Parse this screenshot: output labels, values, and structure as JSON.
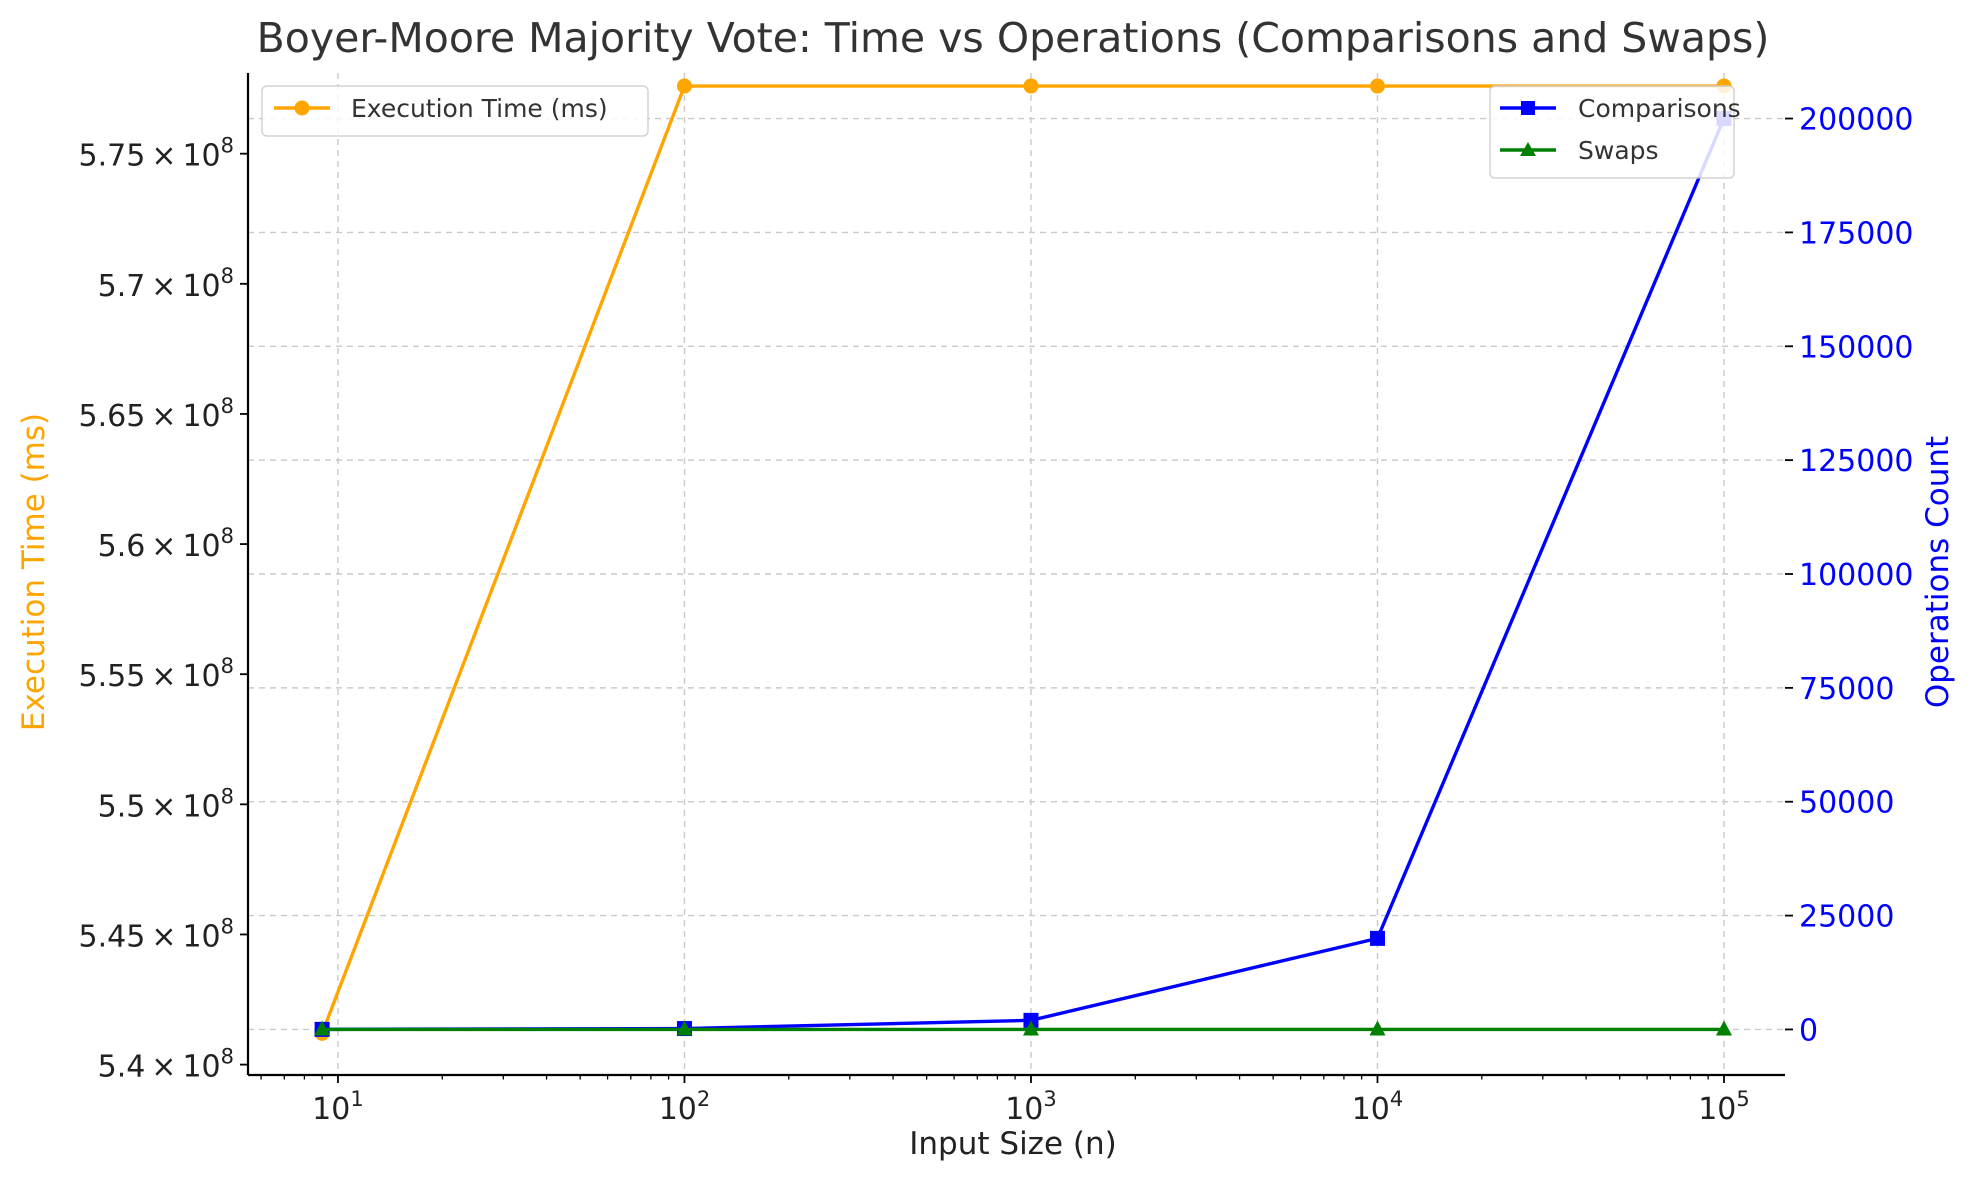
{
  "chart_data": {
    "type": "line",
    "title": "Boyer-Moore Majority Vote: Time vs Operations (Comparisons and Swaps)",
    "xlabel": "Input Size (n)",
    "x_scale": "log",
    "xlim": [
      5.5,
      150000
    ],
    "x": [
      9,
      100,
      1000,
      10000,
      100000
    ],
    "x_ticks": [
      {
        "base": "10",
        "exp": "1",
        "value": 10
      },
      {
        "base": "10",
        "exp": "2",
        "value": 100
      },
      {
        "base": "10",
        "exp": "3",
        "value": 1000
      },
      {
        "base": "10",
        "exp": "4",
        "value": 10000
      },
      {
        "base": "10",
        "exp": "5",
        "value": 100000
      }
    ],
    "y_left": {
      "label": "Execution Time (ms)",
      "color": "#ffa500",
      "ylim": [
        539600000,
        578100000
      ],
      "ticks": [
        {
          "mant": "5.4",
          "exp": "8",
          "value": 540000000
        },
        {
          "mant": "5.45",
          "exp": "8",
          "value": 545000000
        },
        {
          "mant": "5.5",
          "exp": "8",
          "value": 550000000
        },
        {
          "mant": "5.55",
          "exp": "8",
          "value": 555000000
        },
        {
          "mant": "5.6",
          "exp": "8",
          "value": 560000000
        },
        {
          "mant": "5.65",
          "exp": "8",
          "value": 565000000
        },
        {
          "mant": "5.7",
          "exp": "8",
          "value": 570000000
        },
        {
          "mant": "5.75",
          "exp": "8",
          "value": 575000000
        }
      ]
    },
    "y_right": {
      "label": "Operations Count",
      "color": "#0000ff",
      "ylim": [
        -10000,
        210000
      ],
      "ticks": [
        {
          "label": "0",
          "value": 0
        },
        {
          "label": "25000",
          "value": 25000
        },
        {
          "label": "50000",
          "value": 50000
        },
        {
          "label": "75000",
          "value": 75000
        },
        {
          "label": "100000",
          "value": 100000
        },
        {
          "label": "125000",
          "value": 125000
        },
        {
          "label": "150000",
          "value": 150000
        },
        {
          "label": "175000",
          "value": 175000
        },
        {
          "label": "200000",
          "value": 200000
        }
      ]
    },
    "series": [
      {
        "name": "Execution Time (ms)",
        "axis": "left",
        "color": "#ffa500",
        "marker": "circle",
        "values": [
          541200000,
          577600000,
          577600000,
          577600000,
          577600000
        ]
      },
      {
        "name": "Comparisons",
        "axis": "right",
        "color": "#0000ff",
        "marker": "square",
        "values": [
          18,
          200,
          2000,
          20000,
          200000
        ]
      },
      {
        "name": "Swaps",
        "axis": "right",
        "color": "#008000",
        "marker": "triangle",
        "values": [
          0,
          0,
          0,
          0,
          0
        ]
      }
    ],
    "grid": true,
    "legend_left": "top-left",
    "legend_right": "top-right"
  }
}
